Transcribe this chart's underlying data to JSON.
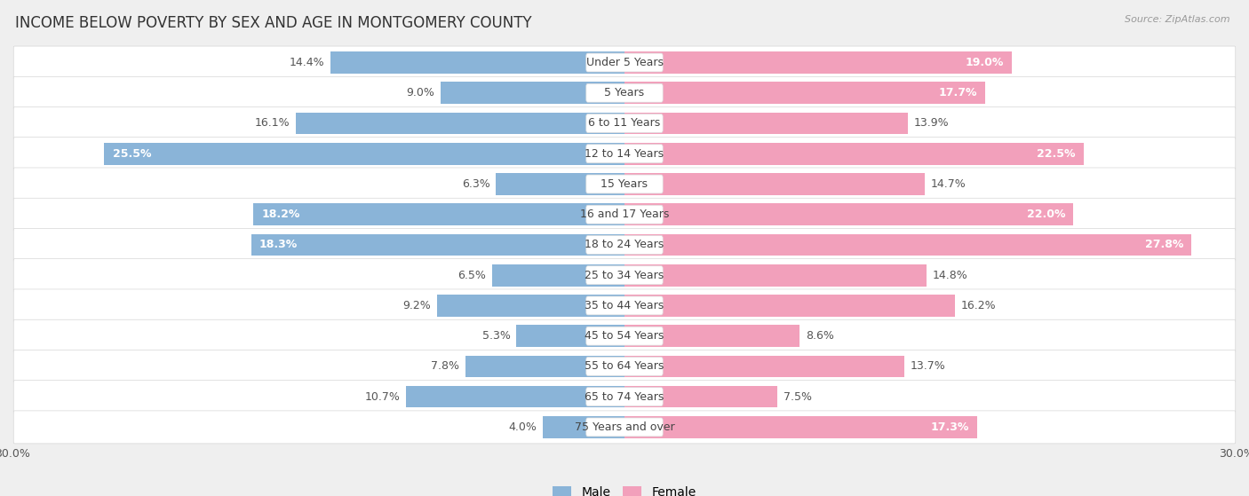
{
  "title": "INCOME BELOW POVERTY BY SEX AND AGE IN MONTGOMERY COUNTY",
  "source": "Source: ZipAtlas.com",
  "categories": [
    "Under 5 Years",
    "5 Years",
    "6 to 11 Years",
    "12 to 14 Years",
    "15 Years",
    "16 and 17 Years",
    "18 to 24 Years",
    "25 to 34 Years",
    "35 to 44 Years",
    "45 to 54 Years",
    "55 to 64 Years",
    "65 to 74 Years",
    "75 Years and over"
  ],
  "male_values": [
    14.4,
    9.0,
    16.1,
    25.5,
    6.3,
    18.2,
    18.3,
    6.5,
    9.2,
    5.3,
    7.8,
    10.7,
    4.0
  ],
  "female_values": [
    19.0,
    17.7,
    13.9,
    22.5,
    14.7,
    22.0,
    27.8,
    14.8,
    16.2,
    8.6,
    13.7,
    7.5,
    17.3
  ],
  "male_color": "#8ab4d8",
  "female_color": "#f2a0bb",
  "background_color": "#efefef",
  "bar_bg_color": "#ffffff",
  "row_bg_color": "#e8e8e8",
  "xlim": 30.0,
  "legend_male": "Male",
  "legend_female": "Female",
  "title_fontsize": 12,
  "label_fontsize": 9,
  "category_fontsize": 9,
  "source_fontsize": 8
}
